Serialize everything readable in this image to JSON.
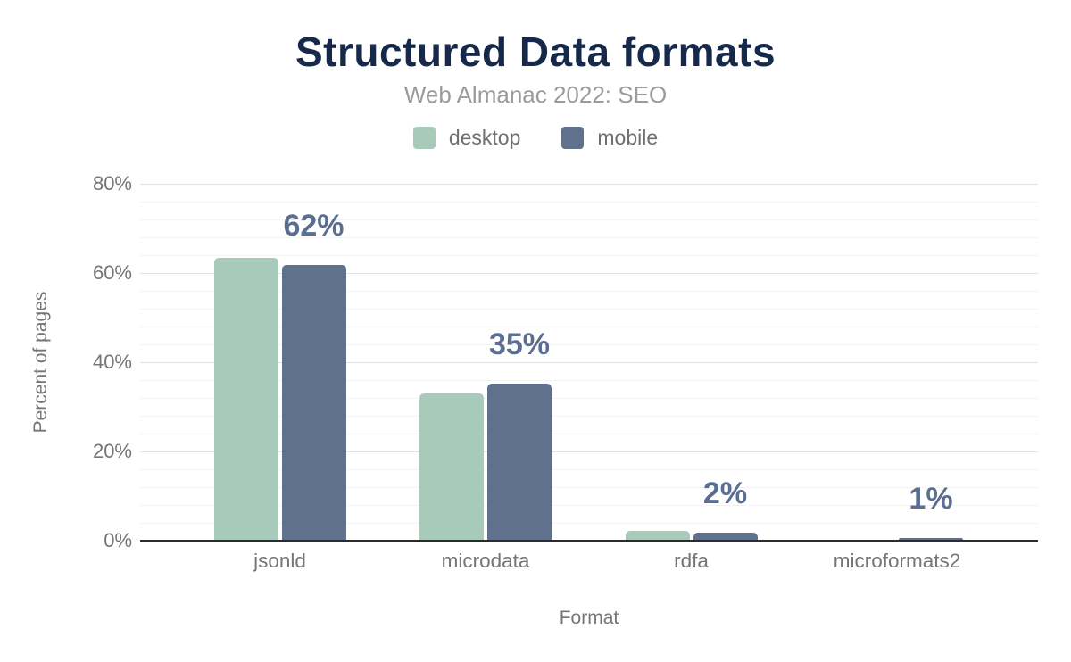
{
  "header": {
    "title": "Structured Data formats",
    "subtitle": "Web Almanac 2022: SEO"
  },
  "axes": {
    "y_title": "Percent of pages",
    "x_title": "Format"
  },
  "colors": {
    "title": "#16294b",
    "subtitle": "#9b9b9b",
    "axis_text": "#757575",
    "value_label": "#5b6e91",
    "desktop": "#a8cabb",
    "mobile": "#5f718c",
    "axis_line": "#2b2b2b"
  },
  "chart_data": {
    "type": "bar",
    "title": "Structured Data formats",
    "subtitle": "Web Almanac 2022: SEO",
    "categories": [
      "jsonld",
      "microdata",
      "rdfa",
      "microformats2"
    ],
    "series": [
      {
        "name": "desktop",
        "color": "#a8cabb",
        "values": [
          63.4,
          33.0,
          2.2,
          0.05
        ]
      },
      {
        "name": "mobile",
        "color": "#5f718c",
        "values": [
          61.9,
          35.2,
          1.9,
          0.55
        ]
      }
    ],
    "value_labels": [
      "62%",
      "35%",
      "2%",
      "1%"
    ],
    "value_label_series": "mobile",
    "xlabel": "Format",
    "ylabel": "Percent of pages",
    "ylim": [
      0,
      80
    ],
    "yticks": [
      {
        "value": 0,
        "label": "0%"
      },
      {
        "value": 20,
        "label": "20%"
      },
      {
        "value": 40,
        "label": "40%"
      },
      {
        "value": 60,
        "label": "60%"
      },
      {
        "value": 80,
        "label": "80%"
      }
    ],
    "grid": {
      "major_step": 20,
      "minor_step": 4,
      "grid_on": true
    },
    "legend_position": "top"
  }
}
